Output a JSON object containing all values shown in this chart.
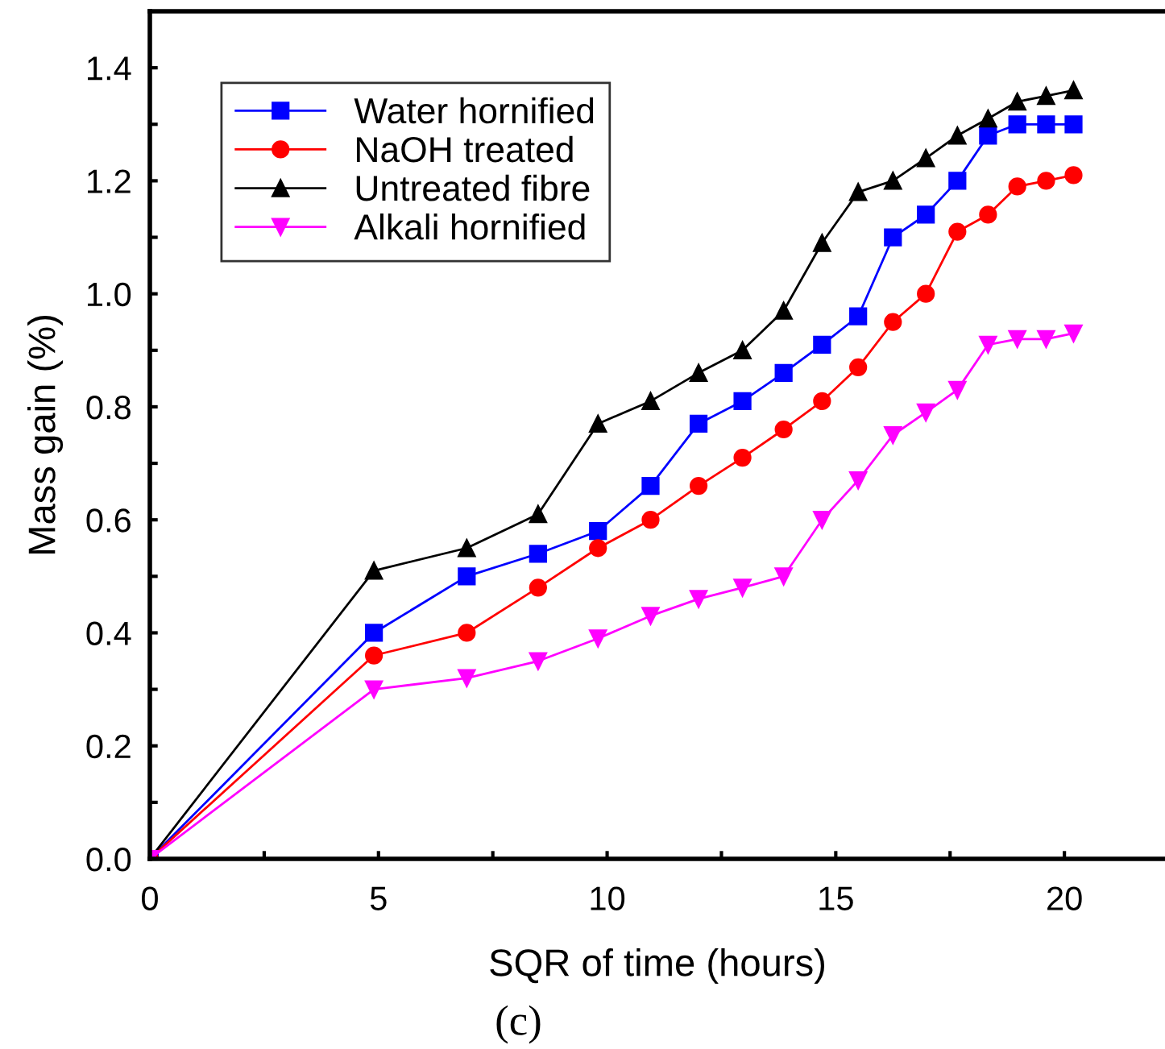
{
  "chart_data": {
    "type": "line",
    "xlabel": "SQR of time (hours)",
    "ylabel": "Mass gain (%)",
    "annotations": [
      "(c)"
    ],
    "x": [
      0,
      4.9,
      6.93,
      8.49,
      9.8,
      10.95,
      12,
      12.96,
      13.86,
      14.7,
      15.49,
      16.25,
      16.97,
      17.66,
      18.33,
      18.97,
      19.6,
      20.2
    ],
    "series": [
      {
        "name": "Water hornified",
        "color": "#0000ff",
        "marker": "square",
        "values": [
          0,
          0.4,
          0.5,
          0.54,
          0.58,
          0.66,
          0.77,
          0.81,
          0.86,
          0.91,
          0.96,
          1.1,
          1.14,
          1.2,
          1.28,
          1.3,
          1.3,
          1.3
        ]
      },
      {
        "name": "NaOH treated",
        "color": "#ff0000",
        "marker": "circle",
        "values": [
          0,
          0.36,
          0.4,
          0.48,
          0.55,
          0.6,
          0.66,
          0.71,
          0.76,
          0.81,
          0.87,
          0.95,
          1.0,
          1.11,
          1.14,
          1.19,
          1.2,
          1.21
        ]
      },
      {
        "name": "Untreated fibre",
        "color": "#000000",
        "marker": "triangle",
        "values": [
          0,
          0.51,
          0.55,
          0.61,
          0.77,
          0.81,
          0.86,
          0.9,
          0.97,
          1.09,
          1.18,
          1.2,
          1.24,
          1.28,
          1.31,
          1.34,
          1.35,
          1.36
        ]
      },
      {
        "name": "Alkali hornified",
        "color": "#ff00ff",
        "marker": "triangle_down",
        "values": [
          0,
          0.3,
          0.32,
          0.35,
          0.39,
          0.43,
          0.46,
          0.48,
          0.5,
          0.6,
          0.67,
          0.75,
          0.79,
          0.83,
          0.91,
          0.92,
          0.92,
          0.93
        ]
      }
    ],
    "xlim": [
      0,
      22.2
    ],
    "ylim": [
      0,
      1.5
    ],
    "xticks": [
      0,
      {
        "value": 2.5,
        "label": null
      },
      5,
      {
        "value": 7.5,
        "label": null
      },
      10,
      {
        "value": 12.5,
        "label": null
      },
      15,
      {
        "value": 17.5,
        "label": null
      },
      20
    ],
    "yticks": [
      "0.0",
      {
        "value": 0.1,
        "label": null
      },
      {
        "value": 0.2,
        "label": "0.2"
      },
      {
        "value": 0.3,
        "label": null
      },
      {
        "value": 0.4,
        "label": "0.4"
      },
      {
        "value": 0.5,
        "label": null
      },
      {
        "value": 0.6,
        "label": "0.6"
      },
      {
        "value": 0.7,
        "label": null
      },
      {
        "value": 0.8,
        "label": "0.8"
      },
      {
        "value": 0.9,
        "label": null
      },
      {
        "value": 1.0,
        "label": "1.0"
      },
      {
        "value": 1.1,
        "label": null
      },
      {
        "value": 1.2,
        "label": "1.2"
      },
      {
        "value": 1.3,
        "label": null
      },
      {
        "value": 1.4,
        "label": "1.4"
      }
    ],
    "grid": false,
    "legend": "top left",
    "line_style": "solid"
  }
}
